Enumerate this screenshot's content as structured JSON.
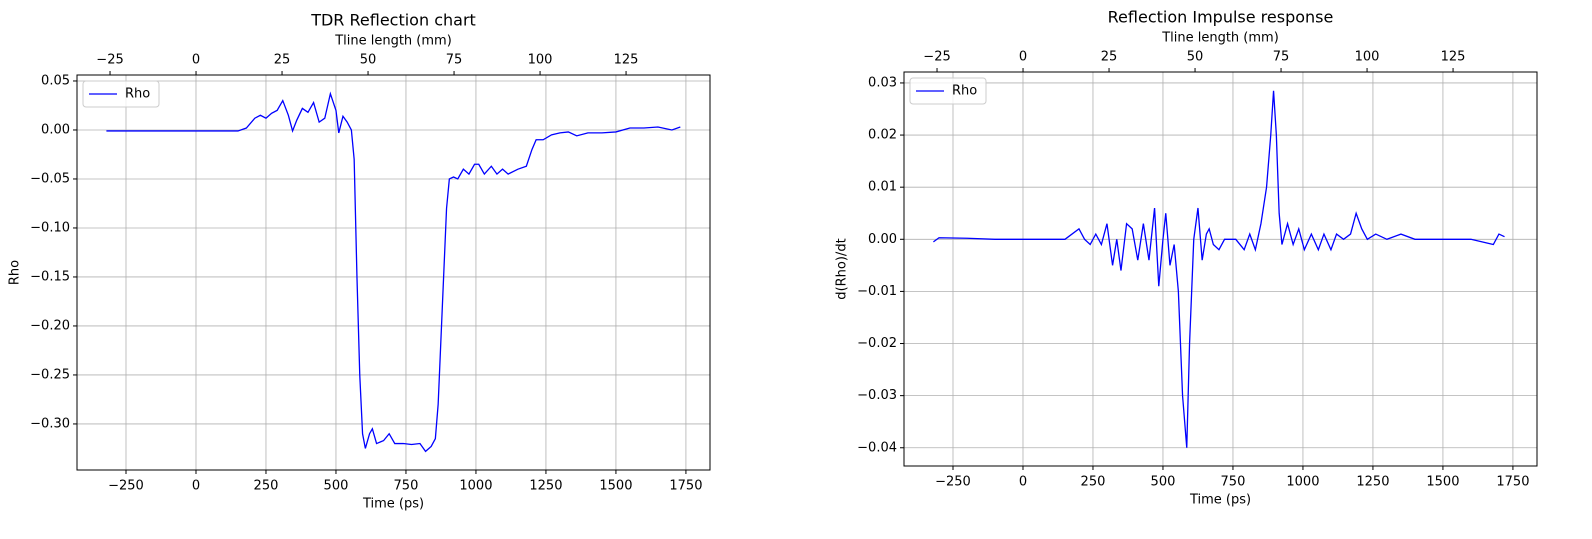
{
  "chart_data": [
    {
      "type": "line",
      "title": "TDR Reflection chart",
      "xlabel": "Time (ps)",
      "ylabel": "Rho",
      "x2label": "Tline length (mm)",
      "grid": true,
      "legend": "upper left",
      "xlim": [
        -425,
        1836
      ],
      "xticks": [
        {
          "value": -250,
          "label": "−250"
        },
        0,
        250,
        500,
        750,
        1000,
        1250,
        1500,
        1750
      ],
      "x2lim": [
        -34.6,
        149.4
      ],
      "x2ticks": [
        {
          "value": -25,
          "label": "−25"
        },
        0,
        25,
        50,
        75,
        100,
        125
      ],
      "ylim": [
        -0.347,
        0.0561
      ],
      "yticks": [
        0.05,
        {
          "value": 0,
          "label": "0.00"
        },
        {
          "value": -0.05,
          "label": "−0.05"
        },
        {
          "value": -0.1,
          "label": "−0.10"
        },
        {
          "value": -0.15,
          "label": "−0.15"
        },
        {
          "value": -0.2,
          "label": "−0.20"
        },
        {
          "value": -0.25,
          "label": "−0.25"
        },
        {
          "value": -0.3,
          "label": "−0.30"
        }
      ],
      "x": [
        -320,
        -250,
        -100,
        0,
        100,
        150,
        180,
        210,
        230,
        250,
        270,
        290,
        310,
        330,
        345,
        360,
        380,
        400,
        420,
        440,
        460,
        480,
        500,
        510,
        525,
        540,
        555,
        565,
        575,
        585,
        595,
        605,
        620,
        630,
        645,
        670,
        690,
        710,
        740,
        770,
        800,
        820,
        840,
        855,
        865,
        880,
        895,
        905,
        920,
        935,
        955,
        975,
        995,
        1010,
        1030,
        1055,
        1075,
        1095,
        1115,
        1150,
        1180,
        1200,
        1215,
        1240,
        1270,
        1300,
        1330,
        1360,
        1400,
        1450,
        1500,
        1550,
        1600,
        1650,
        1700,
        1730
      ],
      "series": [
        {
          "name": "Rho",
          "color": "#0000ff",
          "values": [
            -0.001,
            -0.001,
            -0.001,
            -0.001,
            -0.001,
            -0.001,
            0.002,
            0.012,
            0.015,
            0.012,
            0.017,
            0.02,
            0.03,
            0.015,
            -0.001,
            0.01,
            0.022,
            0.018,
            0.028,
            0.008,
            0.012,
            0.037,
            0.02,
            -0.003,
            0.014,
            0.008,
            0.0,
            -0.03,
            -0.15,
            -0.25,
            -0.31,
            -0.325,
            -0.31,
            -0.305,
            -0.32,
            -0.317,
            -0.31,
            -0.32,
            -0.32,
            -0.321,
            -0.32,
            -0.328,
            -0.323,
            -0.315,
            -0.28,
            -0.18,
            -0.08,
            -0.05,
            -0.048,
            -0.05,
            -0.04,
            -0.045,
            -0.035,
            -0.035,
            -0.045,
            -0.037,
            -0.045,
            -0.04,
            -0.045,
            -0.04,
            -0.037,
            -0.02,
            -0.01,
            -0.01,
            -0.005,
            -0.003,
            -0.002,
            -0.006,
            -0.003,
            -0.003,
            -0.002,
            0.002,
            0.002,
            0.003,
            0.0,
            0.003
          ]
        }
      ]
    },
    {
      "type": "line",
      "title": "Reflection Impulse response",
      "xlabel": "Time (ps)",
      "ylabel": "d(Rho)/dt",
      "x2label": "Tline length (mm)",
      "grid": true,
      "legend": "upper left",
      "xlim": [
        -425,
        1836
      ],
      "xticks": [
        {
          "value": -250,
          "label": "−250"
        },
        0,
        250,
        500,
        750,
        1000,
        1250,
        1500,
        1750
      ],
      "x2lim": [
        -34.6,
        149.4
      ],
      "x2ticks": [
        {
          "value": -25,
          "label": "−25"
        },
        0,
        25,
        50,
        75,
        100,
        125
      ],
      "ylim": [
        -0.0435,
        0.0321
      ],
      "yticks": [
        0.03,
        0.02,
        0.01,
        {
          "value": 0,
          "label": "0.00"
        },
        {
          "value": -0.01,
          "label": "−0.01"
        },
        {
          "value": -0.02,
          "label": "−0.02"
        },
        {
          "value": -0.03,
          "label": "−0.03"
        },
        {
          "value": -0.04,
          "label": "−0.04"
        }
      ],
      "x": [
        -320,
        -300,
        -200,
        -100,
        0,
        100,
        150,
        200,
        220,
        240,
        260,
        280,
        300,
        320,
        335,
        350,
        370,
        390,
        410,
        430,
        450,
        470,
        485,
        500,
        510,
        525,
        540,
        555,
        570,
        585,
        595,
        610,
        625,
        640,
        655,
        665,
        680,
        700,
        720,
        760,
        790,
        810,
        830,
        850,
        870,
        885,
        895,
        905,
        915,
        925,
        945,
        965,
        985,
        1005,
        1030,
        1055,
        1075,
        1100,
        1120,
        1145,
        1170,
        1190,
        1210,
        1230,
        1260,
        1300,
        1350,
        1400,
        1500,
        1600,
        1680,
        1700,
        1720
      ],
      "series": [
        {
          "name": "Rho",
          "color": "#0000ff",
          "values": [
            -0.0005,
            0.0003,
            0.0002,
            0.0,
            0.0,
            0.0,
            0.0,
            0.002,
            0.0,
            -0.001,
            0.001,
            -0.001,
            0.003,
            -0.005,
            0.0,
            -0.006,
            0.003,
            0.002,
            -0.004,
            0.003,
            -0.004,
            0.006,
            -0.009,
            0.0,
            0.005,
            -0.005,
            -0.001,
            -0.01,
            -0.03,
            -0.04,
            -0.02,
            0.0,
            0.006,
            -0.004,
            0.001,
            0.002,
            -0.001,
            -0.002,
            0.0,
            0.0,
            -0.002,
            0.001,
            -0.002,
            0.003,
            0.01,
            0.02,
            0.0285,
            0.02,
            0.005,
            -0.001,
            0.003,
            -0.001,
            0.002,
            -0.002,
            0.001,
            -0.002,
            0.001,
            -0.002,
            0.001,
            0.0,
            0.001,
            0.005,
            0.002,
            0.0,
            0.001,
            0.0,
            0.001,
            0.0,
            0.0,
            0.0,
            -0.001,
            0.001,
            0.0005
          ]
        }
      ]
    }
  ]
}
